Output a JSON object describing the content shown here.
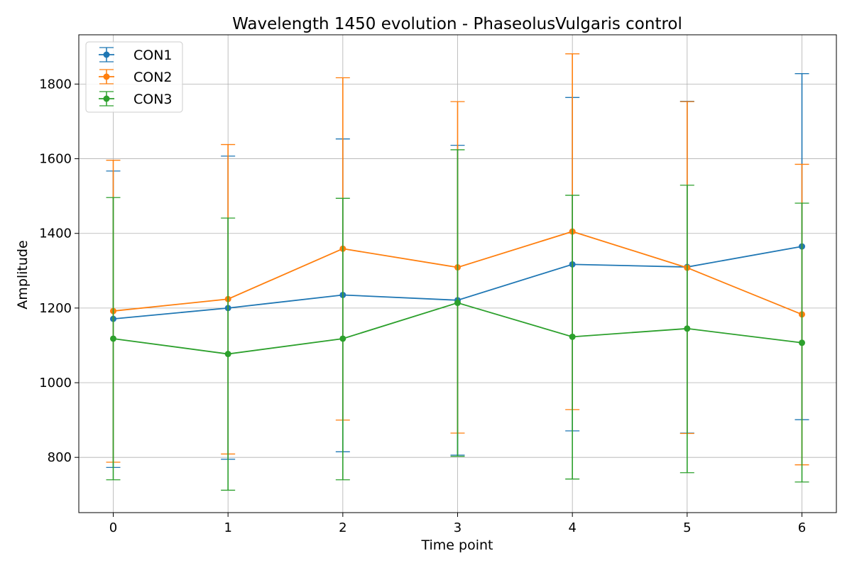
{
  "chart_data": {
    "type": "line",
    "title": "Wavelength 1450 evolution - PhaseolusVulgaris control",
    "xlabel": "Time point",
    "ylabel": "Amplitude",
    "x": [
      0,
      1,
      2,
      3,
      4,
      5,
      6
    ],
    "x_ticks": [
      "0",
      "1",
      "2",
      "3",
      "4",
      "5",
      "6"
    ],
    "xlim": [
      -0.3,
      6.3
    ],
    "y_ticks": [
      "800",
      "1000",
      "1200",
      "1400",
      "1600",
      "1800"
    ],
    "ylim": [
      652,
      1932
    ],
    "grid": true,
    "legend_position": "top-left",
    "error_bars": true,
    "series": [
      {
        "name": "CON1",
        "color": "#1f77b4",
        "values": [
          1171,
          1200,
          1235,
          1221,
          1317,
          1310,
          1365
        ],
        "lower": [
          773,
          795,
          815,
          806,
          871,
          865,
          901
        ],
        "upper": [
          1567,
          1607,
          1653,
          1636,
          1764,
          1754,
          1828
        ]
      },
      {
        "name": "CON2",
        "color": "#ff7f0e",
        "values": [
          1192,
          1224,
          1359,
          1309,
          1405,
          1308,
          1183
        ],
        "lower": [
          787,
          809,
          900,
          865,
          928,
          864,
          780
        ],
        "upper": [
          1596,
          1638,
          1817,
          1753,
          1881,
          1753,
          1585
        ]
      },
      {
        "name": "CON3",
        "color": "#2ca02c",
        "values": [
          1118,
          1077,
          1118,
          1214,
          1123,
          1145,
          1107
        ],
        "lower": [
          740,
          712,
          740,
          803,
          742,
          759,
          734
        ],
        "upper": [
          1496,
          1441,
          1494,
          1624,
          1502,
          1529,
          1481
        ]
      }
    ]
  }
}
